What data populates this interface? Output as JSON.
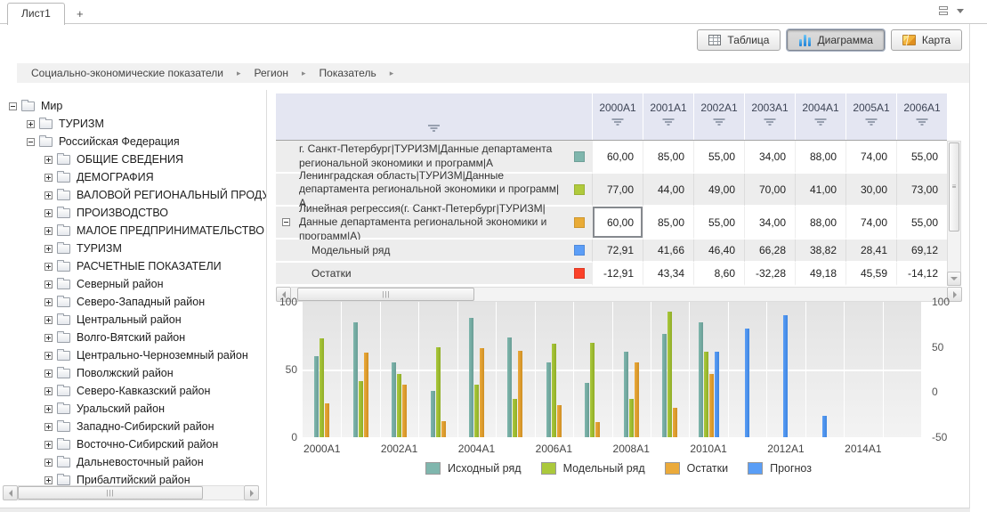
{
  "tabs": {
    "active": "Лист1",
    "add": "+"
  },
  "toolbar": {
    "buttons": [
      {
        "label": "Таблица",
        "icon": "table-icon",
        "active": false
      },
      {
        "label": "Диаграмма",
        "icon": "chart-icon",
        "active": true
      },
      {
        "label": "Карта",
        "icon": "map-icon",
        "active": false
      }
    ]
  },
  "breadcrumb": {
    "items": [
      "Социально-экономические показатели",
      "Регион",
      "Показатель"
    ],
    "separator": "▸"
  },
  "tree": {
    "items": [
      {
        "label": "Мир",
        "depth": 0,
        "state": "expanded"
      },
      {
        "label": "ТУРИЗМ",
        "depth": 1,
        "state": "collapsed"
      },
      {
        "label": "Российская Федерация",
        "depth": 1,
        "state": "expanded"
      },
      {
        "label": "ОБЩИЕ СВЕДЕНИЯ",
        "depth": 2,
        "state": "collapsed"
      },
      {
        "label": "ДЕМОГРАФИЯ",
        "depth": 2,
        "state": "collapsed"
      },
      {
        "label": "ВАЛОВОЙ РЕГИОНАЛЬНЫЙ ПРОДУКТ",
        "depth": 2,
        "state": "collapsed"
      },
      {
        "label": "ПРОИЗВОДСТВО",
        "depth": 2,
        "state": "collapsed"
      },
      {
        "label": "МАЛОЕ ПРЕДПРИНИМАТЕЛЬСТВО",
        "depth": 2,
        "state": "collapsed"
      },
      {
        "label": "ТУРИЗМ",
        "depth": 2,
        "state": "collapsed"
      },
      {
        "label": "РАСЧЕТНЫЕ ПОКАЗАТЕЛИ",
        "depth": 2,
        "state": "collapsed"
      },
      {
        "label": "Северный район",
        "depth": 2,
        "state": "collapsed"
      },
      {
        "label": "Северо-Западный район",
        "depth": 2,
        "state": "collapsed"
      },
      {
        "label": "Центральный район",
        "depth": 2,
        "state": "collapsed"
      },
      {
        "label": "Волго-Вятский район",
        "depth": 2,
        "state": "collapsed"
      },
      {
        "label": "Центрально-Черноземный район",
        "depth": 2,
        "state": "collapsed"
      },
      {
        "label": "Поволжский район",
        "depth": 2,
        "state": "collapsed"
      },
      {
        "label": "Северо-Кавказский район",
        "depth": 2,
        "state": "collapsed"
      },
      {
        "label": "Уральский район",
        "depth": 2,
        "state": "collapsed"
      },
      {
        "label": "Западно-Сибирский район",
        "depth": 2,
        "state": "collapsed"
      },
      {
        "label": "Восточно-Сибирский район",
        "depth": 2,
        "state": "collapsed"
      },
      {
        "label": "Дальневосточный район",
        "depth": 2,
        "state": "collapsed"
      },
      {
        "label": "Прибалтийский район",
        "depth": 2,
        "state": "collapsed"
      }
    ]
  },
  "table": {
    "columns": [
      "2000A1",
      "2001A1",
      "2002A1",
      "2003A1",
      "2004A1",
      "2005A1",
      "2006A1"
    ],
    "rows": [
      {
        "label": "г. Санкт-Петербург|ТУРИЗМ|Данные департамента региональной экономики и программ|А",
        "color": "#7fb6ad",
        "indent": 0,
        "expander": null,
        "values": [
          "60,00",
          "85,00",
          "55,00",
          "34,00",
          "88,00",
          "74,00",
          "55,00"
        ]
      },
      {
        "label": "Ленинградская область|ТУРИЗМ|Данные департамента региональной экономики и программ|А",
        "color": "#b0ca3c",
        "indent": 0,
        "expander": null,
        "values": [
          "77,00",
          "44,00",
          "49,00",
          "70,00",
          "41,00",
          "30,00",
          "73,00"
        ]
      },
      {
        "label": "Линейная регрессия(г. Санкт-Петербург|ТУРИЗМ|Данные департамента региональной экономики и программ|А)",
        "color": "#e9ab36",
        "indent": 0,
        "expander": "minus",
        "values": [
          "60,00",
          "85,00",
          "55,00",
          "34,00",
          "88,00",
          "74,00",
          "55,00"
        ]
      },
      {
        "label": "Модельный ряд",
        "color": "#5c9ef7",
        "indent": 1,
        "expander": null,
        "values": [
          "72,91",
          "41,66",
          "46,40",
          "66,28",
          "38,82",
          "28,41",
          "69,12"
        ]
      },
      {
        "label": "Остатки",
        "color": "#fb4129",
        "indent": 1,
        "expander": null,
        "values": [
          "-12,91",
          "43,34",
          "8,60",
          "-32,28",
          "49,18",
          "45,59",
          "-14,12"
        ]
      }
    ],
    "selected_cell": {
      "row": 2,
      "col": 0
    }
  },
  "chart_data": {
    "type": "bar",
    "x_domain_years": [
      2000,
      2016
    ],
    "x_tick_years": [
      2000,
      2002,
      2004,
      2006,
      2008,
      2010,
      2012,
      2014
    ],
    "x_tick_labels": [
      "2000A1",
      "2002A1",
      "2004A1",
      "2006A1",
      "2008A1",
      "2010A1",
      "2012A1",
      "2014A1"
    ],
    "left_axis": {
      "range": [
        0,
        100
      ],
      "ticks": [
        100,
        50,
        0
      ]
    },
    "right_axis": {
      "range": [
        -50,
        100
      ],
      "ticks": [
        100,
        50,
        0,
        -50
      ],
      "bars_baseline": -50
    },
    "grid": true,
    "legend_position": "bottom",
    "series": [
      {
        "name": "Исходный ряд",
        "color": "#7fb6ad",
        "border": "#699e95",
        "axis": "left",
        "start_year": 2000,
        "values": [
          60,
          85,
          55,
          34,
          88,
          74,
          55,
          40,
          63,
          76,
          85
        ]
      },
      {
        "name": "Модельный ряд",
        "color": "#abc93c",
        "border": "#90ad27",
        "axis": "left",
        "start_year": 2000,
        "values": [
          72.91,
          41.66,
          46.4,
          66.28,
          38.82,
          28.41,
          69.12,
          70,
          28,
          93,
          63
        ]
      },
      {
        "name": "Остатки",
        "color": "#ebaa3a",
        "border": "#cf8f24",
        "axis": "right",
        "start_year": 2000,
        "values": [
          -12.91,
          43.34,
          8.6,
          -32.28,
          49.18,
          45.59,
          -14.12,
          -33,
          33,
          -17,
          20
        ]
      },
      {
        "name": "Прогноз",
        "color": "#5a9ef6",
        "border": "#3f85e0",
        "axis": "right",
        "start_year": 2010,
        "values": [
          45,
          70,
          85,
          -26
        ]
      }
    ]
  }
}
